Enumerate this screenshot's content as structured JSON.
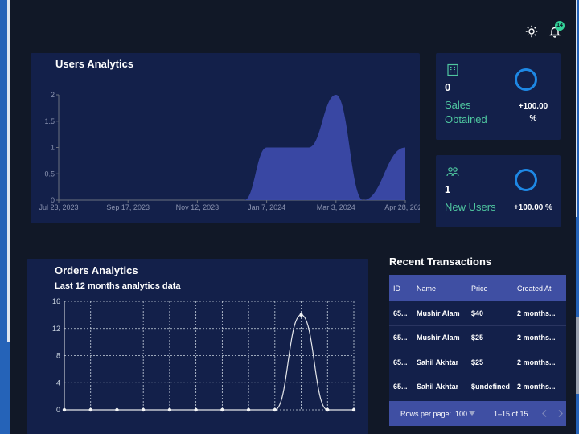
{
  "header": {
    "notification_count": "14"
  },
  "users_analytics": {
    "title": "Users Analytics",
    "chart_data": {
      "type": "area",
      "title": "Users Analytics",
      "x": [
        "2023-06-01",
        "2023-12-20",
        "2024-01-07",
        "2024-01-20",
        "2024-02-10",
        "2024-03-03",
        "2024-03-25",
        "2024-04-28"
      ],
      "values": [
        0,
        0,
        1,
        1,
        1,
        2,
        0,
        1
      ],
      "xticks": [
        "Jul 23, 2023",
        "Sep 17, 2023",
        "Nov 12, 2023",
        "Jan 7, 2024",
        "Mar 3, 2024",
        "Apr 28, 2024"
      ],
      "yticks": [
        "0",
        "0.5",
        "1",
        "1.5",
        "2"
      ],
      "ylim": [
        0,
        2
      ],
      "color": "#3b4aa8"
    }
  },
  "sales_card": {
    "value": "0",
    "label_line1": "Sales",
    "label_line2": "Obtained",
    "percent_line1": "+100.00",
    "percent_line2": "%"
  },
  "users_card": {
    "value": "1",
    "label": "New Users",
    "percent": "+100.00 %"
  },
  "orders_analytics": {
    "title": "Orders Analytics",
    "subtitle": "Last 12 months analytics data",
    "chart_data": {
      "type": "line",
      "values": [
        0,
        0,
        0,
        0,
        0,
        0,
        0,
        0,
        0,
        14,
        0,
        0
      ],
      "yticks": [
        "0",
        "4",
        "8",
        "12",
        "16"
      ],
      "ylim": [
        0,
        16
      ],
      "grid": true,
      "color": "#e5e7eb"
    }
  },
  "transactions": {
    "title": "Recent Transactions",
    "columns": [
      "ID",
      "Name",
      "Price",
      "Created At"
    ],
    "rows": [
      {
        "id": "65...",
        "name": "Mushir Alam",
        "price": "$40",
        "created": "2 months..."
      },
      {
        "id": "65...",
        "name": "Mushir Alam",
        "price": "$25",
        "created": "2 months..."
      },
      {
        "id": "65...",
        "name": "Sahil Akhtar",
        "price": "$25",
        "created": "2 months..."
      },
      {
        "id": "65...",
        "name": "Sahil Akhtar",
        "price": "$undefined",
        "created": "2 months..."
      }
    ],
    "footer": {
      "rows_per_page_label": "Rows per page:",
      "rows_per_page_value": "100",
      "range": "1–15 of 15"
    }
  }
}
